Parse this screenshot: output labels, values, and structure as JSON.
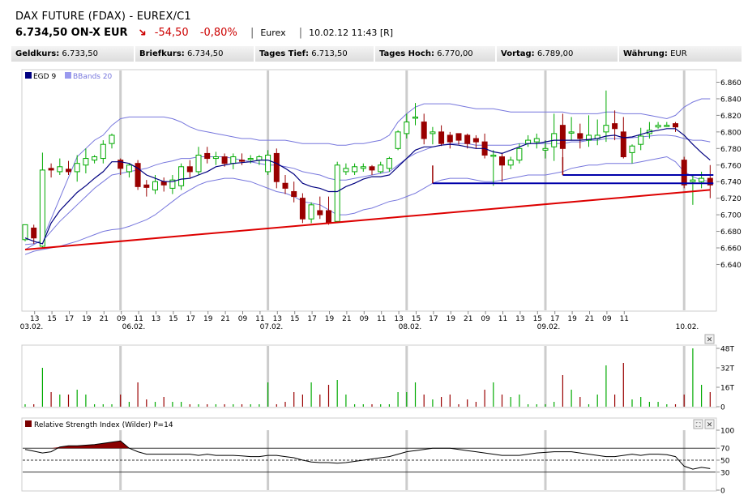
{
  "header": {
    "title": "DAX FUTURE (FDAX) - EUREX/C1",
    "price": "6.734,50 ON-X",
    "currency": "EUR",
    "change_abs": "-54,50",
    "change_pct": "-0,80%",
    "exchange": "Eurex",
    "timestamp": "10.02.12 11:43 [R]"
  },
  "infobar": [
    {
      "label": "Geldkurs:",
      "value": "6.733,50"
    },
    {
      "label": "Briefkurs:",
      "value": "6.734,50"
    },
    {
      "label": "Tages Tief:",
      "value": "6.713,50"
    },
    {
      "label": "Tages Hoch:",
      "value": "6.770,00"
    },
    {
      "label": "Vortag:",
      "value": "6.789,00"
    },
    {
      "label": "Währung:",
      "value": "EUR"
    }
  ],
  "colors": {
    "up": "#00aa00",
    "down": "#990000",
    "indicator": "#000080",
    "bands": "#7777dd",
    "trend": "#dd0000",
    "hline": "#0000aa"
  },
  "chart_data": [
    {
      "type": "candlestick",
      "legend": [
        "EGD 9",
        "BBands 20"
      ],
      "ylim": [
        6640,
        6870
      ],
      "yticks": [
        "6.860",
        "6.840",
        "6.820",
        "6.800",
        "6.780",
        "6.760",
        "6.740",
        "6.720",
        "6.700",
        "6.680",
        "6.660",
        "6.640"
      ],
      "xticks": [
        "13",
        "15",
        "17",
        "19",
        "21",
        "09",
        "11",
        "13",
        "15",
        "17",
        "19",
        "21",
        "09",
        "11",
        "13",
        "15",
        "17",
        "19",
        "21",
        "09",
        "11",
        "13",
        "15",
        "17",
        "19",
        "21",
        "09",
        "11",
        "13",
        "15",
        "17",
        "19",
        "21",
        "09",
        "11"
      ],
      "date_labels": [
        "03.02.",
        "06.02.",
        "07.02.",
        "08.02.",
        "09.02.",
        "10.02."
      ],
      "candles": [
        [
          6670,
          6688,
          6668,
          6686
        ],
        [
          6684,
          6672,
          6665,
          6688
        ],
        [
          6662,
          6754,
          6660,
          6775
        ],
        [
          6756,
          6754,
          6745,
          6762
        ],
        [
          6752,
          6758,
          6748,
          6768
        ],
        [
          6755,
          6752,
          6748,
          6765
        ],
        [
          6752,
          6762,
          6740,
          6772
        ],
        [
          6760,
          6768,
          6750,
          6780
        ],
        [
          6766,
          6770,
          6762,
          6772
        ],
        [
          6768,
          6785,
          6762,
          6790
        ],
        [
          6786,
          6796,
          6780,
          6798
        ],
        [
          6766,
          6756,
          6748,
          6768
        ],
        [
          6752,
          6760,
          6745,
          6762
        ],
        [
          6762,
          6734,
          6730,
          6766
        ],
        [
          6736,
          6733,
          6722,
          6742
        ],
        [
          6730,
          6740,
          6725,
          6748
        ],
        [
          6740,
          6736,
          6728,
          6745
        ],
        [
          6732,
          6742,
          6725,
          6748
        ],
        [
          6735,
          6758,
          6730,
          6762
        ],
        [
          6758,
          6752,
          6745,
          6766
        ],
        [
          6752,
          6772,
          6748,
          6782
        ],
        [
          6774,
          6768,
          6762,
          6782
        ],
        [
          6768,
          6770,
          6760,
          6776
        ],
        [
          6770,
          6762,
          6758,
          6774
        ],
        [
          6762,
          6770,
          6755,
          6774
        ],
        [
          6766,
          6765,
          6760,
          6774
        ],
        [
          6768,
          6768,
          6762,
          6772
        ],
        [
          6766,
          6770,
          6760,
          6772
        ],
        [
          6752,
          6772,
          6748,
          6778
        ],
        [
          6774,
          6740,
          6732,
          6780
        ],
        [
          6738,
          6732,
          6725,
          6748
        ],
        [
          6728,
          6722,
          6715,
          6740
        ],
        [
          6720,
          6695,
          6690,
          6726
        ],
        [
          6695,
          6712,
          6690,
          6715
        ],
        [
          6705,
          6700,
          6695,
          6722
        ],
        [
          6705,
          6690,
          6688,
          6722
        ],
        [
          6692,
          6760,
          6690,
          6764
        ],
        [
          6752,
          6756,
          6748,
          6762
        ],
        [
          6752,
          6758,
          6748,
          6762
        ],
        [
          6756,
          6758,
          6752,
          6762
        ],
        [
          6758,
          6754,
          6748,
          6760
        ],
        [
          6752,
          6760,
          6750,
          6764
        ],
        [
          6756,
          6768,
          6752,
          6770
        ],
        [
          6780,
          6800,
          6778,
          6802
        ],
        [
          6798,
          6812,
          6792,
          6822
        ],
        [
          6818,
          6818,
          6808,
          6835
        ],
        [
          6812,
          6792,
          6785,
          6822
        ],
        [
          6798,
          6800,
          6785,
          6806
        ],
        [
          6800,
          6786,
          6783,
          6808
        ],
        [
          6796,
          6788,
          6780,
          6800
        ],
        [
          6798,
          6790,
          6785,
          6798
        ],
        [
          6796,
          6786,
          6780,
          6798
        ],
        [
          6792,
          6788,
          6780,
          6796
        ],
        [
          6788,
          6772,
          6768,
          6798
        ],
        [
          6772,
          6772,
          6735,
          6778
        ],
        [
          6770,
          6760,
          6740,
          6775
        ],
        [
          6760,
          6766,
          6755,
          6770
        ],
        [
          6766,
          6780,
          6762,
          6786
        ],
        [
          6786,
          6790,
          6782,
          6796
        ],
        [
          6788,
          6792,
          6780,
          6798
        ],
        [
          6778,
          6780,
          6768,
          6790
        ],
        [
          6782,
          6798,
          6765,
          6822
        ],
        [
          6808,
          6780,
          6760,
          6822
        ],
        [
          6800,
          6800,
          6790,
          6818
        ],
        [
          6798,
          6792,
          6780,
          6810
        ],
        [
          6790,
          6796,
          6782,
          6820
        ],
        [
          6792,
          6796,
          6784,
          6815
        ],
        [
          6800,
          6808,
          6788,
          6850
        ],
        [
          6810,
          6804,
          6790,
          6826
        ],
        [
          6800,
          6770,
          6768,
          6818
        ],
        [
          6775,
          6783,
          6762,
          6785
        ],
        [
          6785,
          6795,
          6778,
          6805
        ],
        [
          6798,
          6802,
          6792,
          6812
        ],
        [
          6806,
          6808,
          6804,
          6812
        ],
        [
          6808,
          6808,
          6806,
          6812
        ],
        [
          6810,
          6806,
          6800,
          6812
        ],
        [
          6766,
          6736,
          6732,
          6770
        ],
        [
          6740,
          6742,
          6712,
          6748
        ],
        [
          6740,
          6744,
          6732,
          6752
        ],
        [
          6744,
          6736,
          6720,
          6760
        ]
      ],
      "egd9": [
        6672,
        6668,
        6665,
        6690,
        6705,
        6716,
        6727,
        6735,
        6744,
        6752,
        6764,
        6764,
        6762,
        6756,
        6748,
        6744,
        6740,
        6740,
        6743,
        6744,
        6748,
        6752,
        6758,
        6760,
        6762,
        6763,
        6764,
        6766,
        6766,
        6762,
        6756,
        6749,
        6738,
        6734,
        6732,
        6728,
        6728,
        6734,
        6738,
        6743,
        6746,
        6746,
        6748,
        6758,
        6768,
        6778,
        6782,
        6782,
        6784,
        6785,
        6784,
        6782,
        6780,
        6780,
        6776,
        6774,
        6778,
        6782,
        6786,
        6786,
        6788,
        6790,
        6790,
        6790,
        6790,
        6791,
        6792,
        6795,
        6796,
        6793,
        6794,
        6797,
        6800,
        6802,
        6804,
        6804,
        6796,
        6785,
        6775,
        6766
      ],
      "bb_upper": [
        6658,
        6664,
        6670,
        6695,
        6720,
        6745,
        6770,
        6780,
        6790,
        6796,
        6808,
        6816,
        6818,
        6818,
        6818,
        6818,
        6818,
        6816,
        6812,
        6806,
        6802,
        6800,
        6798,
        6796,
        6794,
        6792,
        6792,
        6790,
        6790,
        6790,
        6790,
        6788,
        6786,
        6786,
        6786,
        6786,
        6784,
        6784,
        6786,
        6786,
        6788,
        6790,
        6796,
        6812,
        6822,
        6830,
        6834,
        6834,
        6834,
        6834,
        6832,
        6830,
        6828,
        6828,
        6828,
        6826,
        6824,
        6824,
        6824,
        6824,
        6824,
        6824,
        6824,
        6822,
        6822,
        6822,
        6822,
        6824,
        6824,
        6822,
        6822,
        6822,
        6820,
        6818,
        6816,
        6820,
        6830,
        6836,
        6840,
        6840
      ],
      "bb_mid": [
        6664,
        6665,
        6668,
        6680,
        6692,
        6702,
        6712,
        6722,
        6732,
        6740,
        6748,
        6750,
        6752,
        6754,
        6756,
        6760,
        6763,
        6765,
        6768,
        6768,
        6770,
        6770,
        6770,
        6770,
        6768,
        6766,
        6764,
        6762,
        6760,
        6760,
        6758,
        6756,
        6752,
        6750,
        6748,
        6744,
        6742,
        6742,
        6744,
        6746,
        6748,
        6750,
        6752,
        6760,
        6768,
        6774,
        6778,
        6782,
        6784,
        6786,
        6786,
        6786,
        6784,
        6784,
        6784,
        6784,
        6784,
        6786,
        6786,
        6786,
        6786,
        6786,
        6786,
        6788,
        6788,
        6790,
        6790,
        6792,
        6792,
        6792,
        6793,
        6794,
        6795,
        6796,
        6796,
        6795,
        6792,
        6790,
        6790,
        6788
      ],
      "bb_lower": [
        6652,
        6656,
        6658,
        6660,
        6662,
        6665,
        6668,
        6672,
        6676,
        6680,
        6682,
        6683,
        6686,
        6690,
        6694,
        6700,
        6708,
        6716,
        6724,
        6730,
        6736,
        6740,
        6742,
        6744,
        6744,
        6742,
        6740,
        6736,
        6732,
        6728,
        6726,
        6722,
        6716,
        6714,
        6712,
        6706,
        6700,
        6700,
        6702,
        6706,
        6708,
        6712,
        6716,
        6718,
        6722,
        6726,
        6732,
        6738,
        6742,
        6744,
        6744,
        6744,
        6742,
        6740,
        6740,
        6742,
        6744,
        6746,
        6748,
        6748,
        6748,
        6750,
        6752,
        6756,
        6758,
        6760,
        6760,
        6762,
        6762,
        6762,
        6762,
        6764,
        6766,
        6768,
        6770,
        6764,
        6752,
        6746,
        6742,
        6740
      ],
      "trend_line": [
        [
          0,
          6658
        ],
        [
          79,
          6730
        ]
      ],
      "hlines": [
        {
          "from": 47,
          "to": 79,
          "y": 6738
        },
        {
          "from": 62,
          "to": 79,
          "y": 6748
        }
      ]
    },
    {
      "type": "bar",
      "yticks": [
        "48T",
        "32T",
        "16T",
        "0"
      ],
      "ylim": [
        0,
        50
      ],
      "values": [
        2,
        2,
        32,
        12,
        10,
        10,
        14,
        10,
        2,
        2,
        2,
        10,
        4,
        20,
        6,
        4,
        8,
        4,
        4,
        2,
        2,
        2,
        2,
        2,
        2,
        2,
        2,
        2,
        20,
        2,
        4,
        12,
        10,
        20,
        10,
        18,
        22,
        10,
        2,
        2,
        2,
        2,
        2,
        12,
        12,
        20,
        10,
        6,
        8,
        10,
        2,
        6,
        4,
        14,
        20,
        10,
        8,
        10,
        2,
        2,
        2,
        4,
        26,
        14,
        8,
        2,
        10,
        34,
        10,
        36,
        6,
        8,
        4,
        4,
        2,
        2,
        10,
        48,
        18,
        12
      ]
    },
    {
      "type": "line",
      "title": "Relative Strength Index (Wilder) P=14",
      "yticks": [
        "100",
        "70",
        "50",
        "30",
        "0"
      ],
      "ylim": [
        0,
        100
      ],
      "levels": [
        70,
        50,
        30
      ],
      "values": [
        68,
        65,
        62,
        64,
        72,
        74,
        74,
        75,
        76,
        78,
        80,
        82,
        70,
        64,
        60,
        60,
        60,
        60,
        60,
        60,
        58,
        60,
        58,
        58,
        58,
        57,
        56,
        56,
        58,
        58,
        56,
        54,
        50,
        47,
        46,
        46,
        45,
        46,
        48,
        50,
        52,
        54,
        56,
        60,
        64,
        66,
        68,
        70,
        70,
        70,
        68,
        66,
        64,
        62,
        60,
        58,
        58,
        58,
        60,
        62,
        63,
        64,
        64,
        64,
        62,
        60,
        58,
        56,
        56,
        58,
        60,
        58,
        60,
        60,
        59,
        56,
        40,
        35,
        38,
        36
      ]
    }
  ]
}
